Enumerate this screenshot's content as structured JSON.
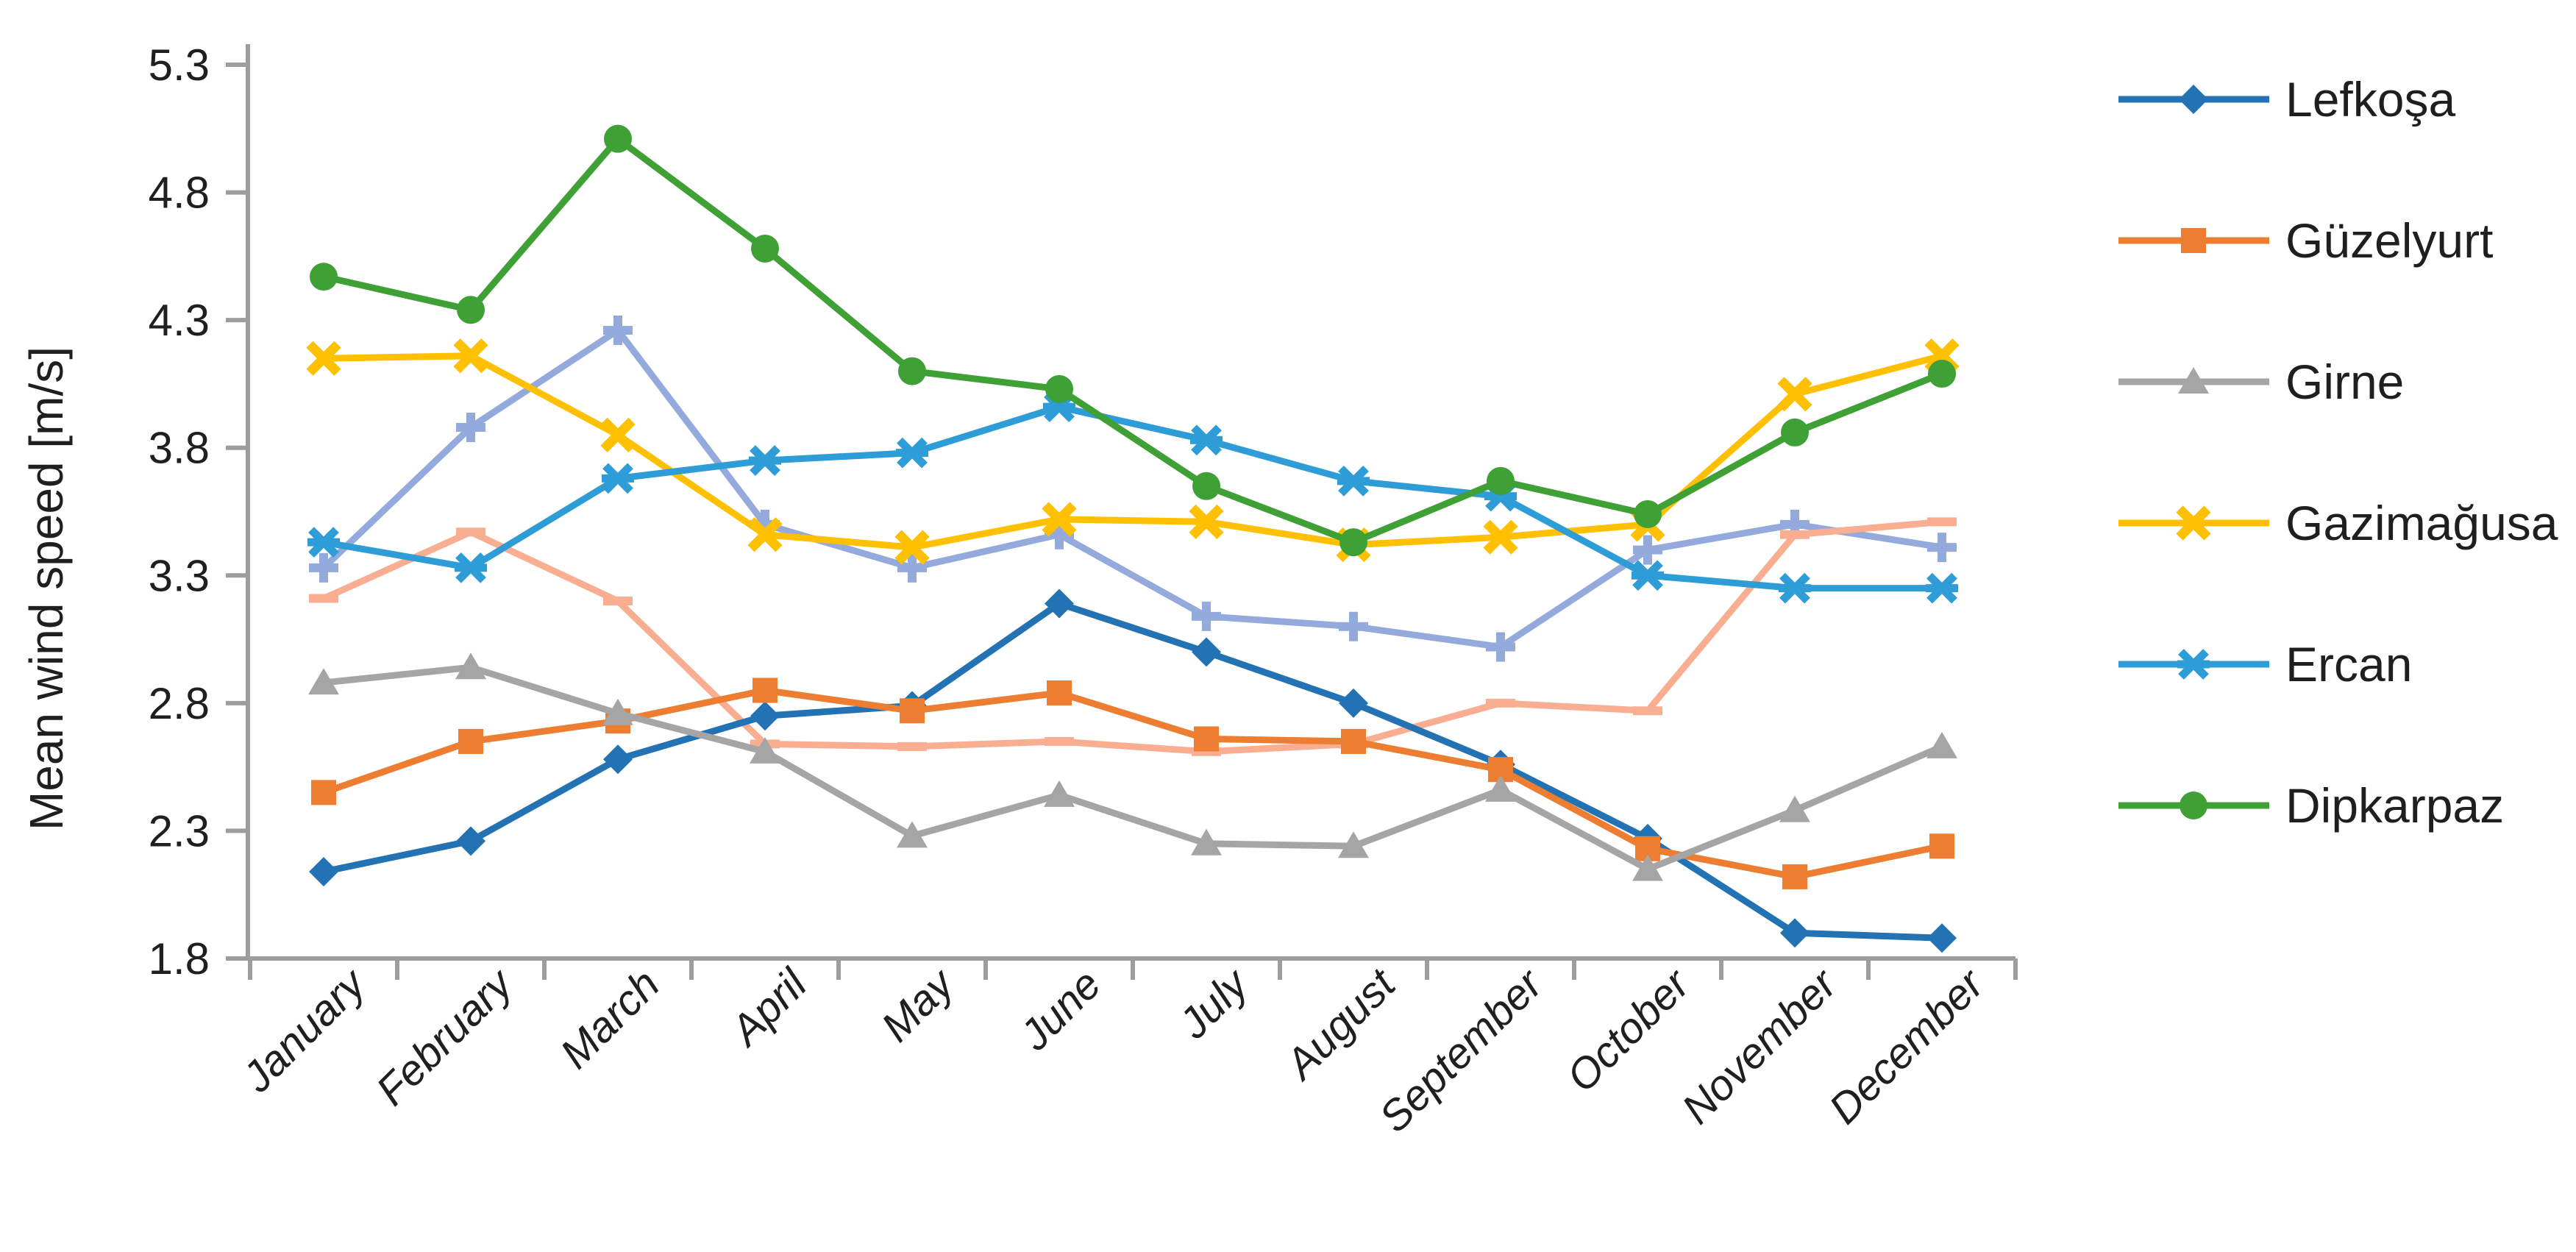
{
  "page": {
    "background": "#ffffff"
  },
  "chart_data": {
    "type": "line",
    "title": "",
    "xlabel": "",
    "ylabel": "Mean wind speed [m/s]",
    "categories": [
      "January",
      "February",
      "March",
      "April",
      "May",
      "June",
      "July",
      "August",
      "September",
      "October",
      "November",
      "December"
    ],
    "y_axis": {
      "min": 1.8,
      "max": 5.3,
      "step": 0.5,
      "tick_labels": [
        "1.8",
        "2.3",
        "2.8",
        "3.3",
        "3.8",
        "4.3",
        "4.8",
        "5.3"
      ]
    },
    "grid": false,
    "legend_position": "right",
    "axis_color": "#9d9d9d",
    "text_color": "#1f1f1f",
    "series": [
      {
        "name": "",
        "id": "unlabeled-1",
        "color": "#94a9dc",
        "marker": "plus",
        "in_legend": false,
        "values": [
          3.33,
          3.88,
          4.26,
          3.5,
          3.33,
          3.46,
          3.14,
          3.1,
          3.02,
          3.4,
          3.5,
          3.41
        ]
      },
      {
        "name": "",
        "id": "unlabeled-2",
        "color": "#f9ae92",
        "marker": "dash",
        "in_legend": false,
        "values": [
          3.21,
          3.47,
          3.2,
          2.64,
          2.63,
          2.65,
          2.61,
          2.64,
          2.8,
          2.77,
          3.46,
          3.51
        ]
      },
      {
        "name": "Lefkoşa",
        "id": "lefkosa",
        "color": "#2272b4",
        "marker": "diamond",
        "in_legend": true,
        "values": [
          2.14,
          2.26,
          2.58,
          2.75,
          2.79,
          3.19,
          3.0,
          2.8,
          2.56,
          2.27,
          1.9,
          1.88
        ]
      },
      {
        "name": "Güzelyurt",
        "id": "guzelyurt",
        "color": "#ed7d31",
        "marker": "square",
        "in_legend": true,
        "values": [
          2.45,
          2.65,
          2.73,
          2.85,
          2.77,
          2.84,
          2.66,
          2.65,
          2.54,
          2.23,
          2.12,
          2.24
        ]
      },
      {
        "name": "Girne",
        "id": "girne",
        "color": "#a5a5a5",
        "marker": "triangle",
        "in_legend": true,
        "values": [
          2.88,
          2.94,
          2.76,
          2.61,
          2.28,
          2.44,
          2.25,
          2.24,
          2.46,
          2.15,
          2.38,
          2.63
        ]
      },
      {
        "name": "Gazimağusa",
        "id": "gazimagusa",
        "color": "#fec000",
        "marker": "x",
        "in_legend": true,
        "values": [
          4.15,
          4.16,
          3.85,
          3.46,
          3.41,
          3.52,
          3.51,
          3.42,
          3.45,
          3.5,
          4.01,
          4.16
        ]
      },
      {
        "name": "Ercan",
        "id": "ercan",
        "color": "#2e9cd6",
        "marker": "asterisk",
        "in_legend": true,
        "values": [
          3.43,
          3.33,
          3.68,
          3.75,
          3.78,
          3.96,
          3.83,
          3.67,
          3.61,
          3.3,
          3.25,
          3.25
        ]
      },
      {
        "name": "Dipkarpaz",
        "id": "dipkarpaz",
        "color": "#3ea035",
        "marker": "circle",
        "in_legend": true,
        "values": [
          4.47,
          4.34,
          5.01,
          4.58,
          4.1,
          4.03,
          3.65,
          3.43,
          3.67,
          3.54,
          3.86,
          4.09
        ]
      }
    ]
  }
}
